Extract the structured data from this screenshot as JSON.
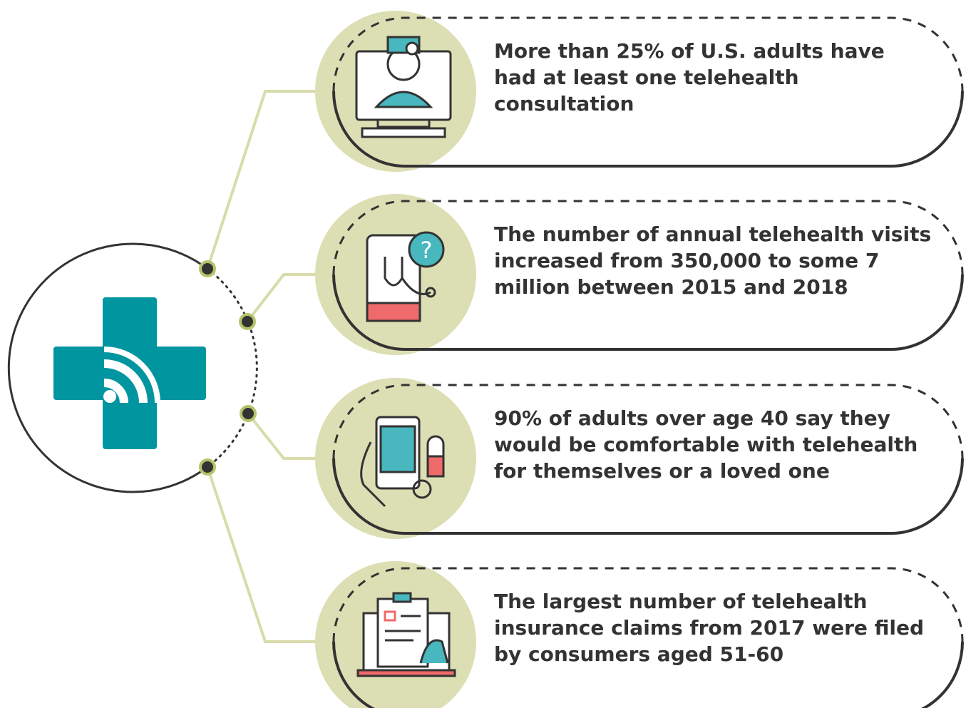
{
  "items": [
    {
      "lines": [
        "More than 25% of U.S. adults have",
        "had at least one telehealth",
        "consultation"
      ]
    },
    {
      "lines": [
        "The number of annual telehealth visits",
        "increased from 350,000 to some 7",
        "million between 2015 and 2018"
      ]
    },
    {
      "lines": [
        "90% of adults over age 40 say they",
        "would be comfortable with telehealth",
        "for themselves or a loved one"
      ]
    },
    {
      "lines": [
        "The largest number of telehealth",
        "insurance claims from 2017 were filed",
        "by consumers aged 51-60"
      ]
    }
  ]
}
